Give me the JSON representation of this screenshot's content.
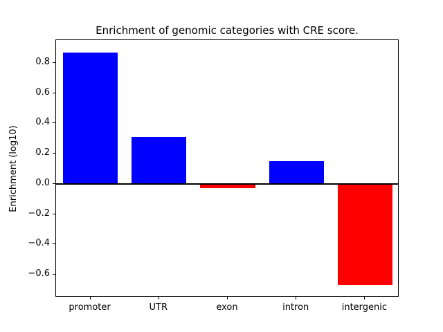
{
  "chart_data": {
    "type": "bar",
    "title": "Enrichment of genomic categories with CRE score.",
    "xlabel": "",
    "ylabel": "Enrichment (log10)",
    "categories": [
      "promoter",
      "UTR",
      "exon",
      "intron",
      "intergenic"
    ],
    "values": [
      0.87,
      0.31,
      -0.03,
      0.15,
      -0.67
    ],
    "ylim": [
      -0.75,
      0.95
    ],
    "yticks": [
      -0.6,
      -0.4,
      -0.2,
      0.0,
      0.2,
      0.4,
      0.6,
      0.8
    ],
    "ytick_labels": [
      "−0.6",
      "−0.4",
      "−0.2",
      "0.0",
      "0.2",
      "0.4",
      "0.6",
      "0.8"
    ],
    "positive_color": "#0000ff",
    "negative_color": "#ff0000",
    "axis_color": "#000000",
    "background_color": "#ffffff",
    "grid": false,
    "legend": "none",
    "bar_width_fraction": 0.8
  }
}
